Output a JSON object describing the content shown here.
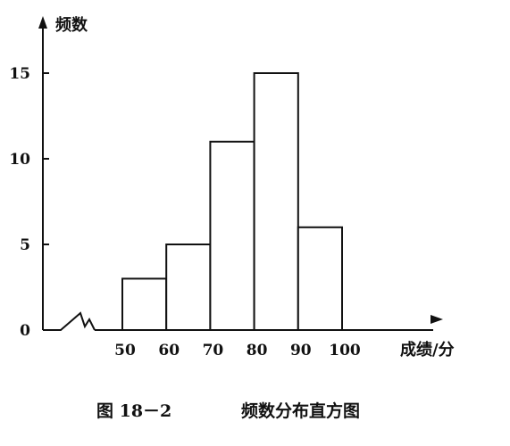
{
  "chart_data": {
    "type": "histogram",
    "title": "",
    "xlabel": "成绩/分",
    "ylabel": "频数",
    "bins": [
      {
        "from": 50,
        "to": 60,
        "value": 3
      },
      {
        "from": 60,
        "to": 70,
        "value": 5
      },
      {
        "from": 70,
        "to": 80,
        "value": 11
      },
      {
        "from": 80,
        "to": 90,
        "value": 15
      },
      {
        "from": 90,
        "to": 100,
        "value": 6
      }
    ],
    "x_tick_labels": [
      "50",
      "60",
      "70",
      "80",
      "90",
      "100"
    ],
    "y_tick_labels": [
      "0",
      "5",
      "10",
      "15"
    ],
    "y_ticks": [
      0,
      5,
      10,
      15
    ],
    "xlim": [
      50,
      100
    ],
    "ylim": [
      0,
      15
    ],
    "x_axis_break": true,
    "grid": false
  },
  "caption": {
    "figure_number": "图 18－2",
    "text": "频数分布直方图"
  }
}
